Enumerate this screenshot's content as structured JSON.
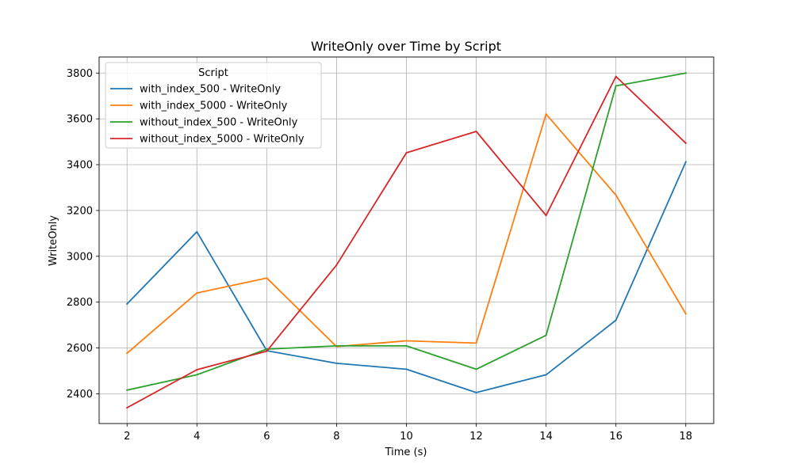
{
  "chart_data": {
    "type": "line",
    "title": "WriteOnly over Time by Script",
    "xlabel": "Time (s)",
    "ylabel": "WriteOnly",
    "x": [
      2,
      4,
      6,
      8,
      10,
      12,
      14,
      16,
      18
    ],
    "xlim": [
      1.2,
      18.8
    ],
    "ylim": [
      2270,
      3870
    ],
    "xticks": [
      2,
      4,
      6,
      8,
      10,
      12,
      14,
      16,
      18
    ],
    "yticks": [
      2400,
      2600,
      2800,
      3000,
      3200,
      3400,
      3600,
      3800
    ],
    "grid": true,
    "legend": {
      "title": "Script",
      "placement": "top-left"
    },
    "series": [
      {
        "name": "with_index_500 - WriteOnly",
        "color": "#1f77b4",
        "values": [
          2792,
          3107,
          2588,
          2533,
          2507,
          2405,
          2483,
          2721,
          3412
        ]
      },
      {
        "name": "with_index_5000 - WriteOnly",
        "color": "#ff7f0e",
        "values": [
          2577,
          2840,
          2905,
          2606,
          2631,
          2621,
          3621,
          3267,
          2749
        ]
      },
      {
        "name": "without_index_500 - WriteOnly",
        "color": "#2ca02c",
        "values": [
          2416,
          2483,
          2595,
          2609,
          2609,
          2507,
          2655,
          3744,
          3800
        ]
      },
      {
        "name": "without_index_5000 - WriteOnly",
        "color": "#d62728",
        "values": [
          2339,
          2505,
          2586,
          2962,
          3452,
          3545,
          3178,
          3785,
          3494
        ]
      }
    ]
  }
}
